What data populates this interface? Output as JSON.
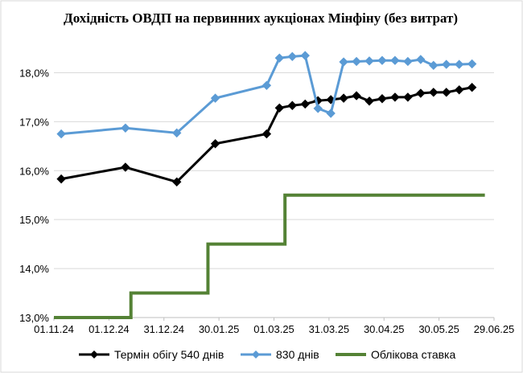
{
  "chart_data": {
    "type": "line",
    "title": "Дохідність ОВДП на первинних аукціонах Мінфіну (без витрат)",
    "xlabel": "",
    "ylabel": "",
    "x_ticks": [
      "01.11.24",
      "01.12.24",
      "31.12.24",
      "30.01.25",
      "01.03.25",
      "31.03.25",
      "30.04.25",
      "30.05.25",
      "29.06.25"
    ],
    "xlim": [
      "2024-11-01",
      "2025-06-29"
    ],
    "y_ticks": [
      "13,0%",
      "14,0%",
      "15,0%",
      "16,0%",
      "17,0%",
      "18,0%"
    ],
    "ylim": [
      13.0,
      18.5
    ],
    "grid": "horizontal",
    "legend": "bottom",
    "series": [
      {
        "name": "Термін обігу 540 днів",
        "color": "#000000",
        "marker": "diamond",
        "step": false,
        "points": [
          [
            "2024-11-05",
            15.83
          ],
          [
            "2024-12-10",
            16.07
          ],
          [
            "2025-01-07",
            15.77
          ],
          [
            "2025-01-28",
            16.55
          ],
          [
            "2025-02-25",
            16.75
          ],
          [
            "2025-03-04",
            17.28
          ],
          [
            "2025-03-11",
            17.33
          ],
          [
            "2025-03-18",
            17.36
          ],
          [
            "2025-03-25",
            17.43
          ],
          [
            "2025-04-01",
            17.45
          ],
          [
            "2025-04-08",
            17.48
          ],
          [
            "2025-04-15",
            17.53
          ],
          [
            "2025-04-22",
            17.42
          ],
          [
            "2025-04-29",
            17.47
          ],
          [
            "2025-05-06",
            17.5
          ],
          [
            "2025-05-13",
            17.5
          ],
          [
            "2025-05-20",
            17.58
          ],
          [
            "2025-05-27",
            17.6
          ],
          [
            "2025-06-03",
            17.6
          ],
          [
            "2025-06-10",
            17.65
          ],
          [
            "2025-06-17",
            17.7
          ]
        ]
      },
      {
        "name": "830 днів",
        "color": "#5b9bd5",
        "marker": "diamond",
        "step": false,
        "points": [
          [
            "2024-11-05",
            16.75
          ],
          [
            "2024-12-10",
            16.87
          ],
          [
            "2025-01-07",
            16.77
          ],
          [
            "2025-01-28",
            17.48
          ],
          [
            "2025-02-25",
            17.74
          ],
          [
            "2025-03-04",
            18.3
          ],
          [
            "2025-03-11",
            18.33
          ],
          [
            "2025-03-18",
            18.35
          ],
          [
            "2025-03-25",
            17.27
          ],
          [
            "2025-04-01",
            17.17
          ],
          [
            "2025-04-08",
            18.22
          ],
          [
            "2025-04-15",
            18.23
          ],
          [
            "2025-04-22",
            18.24
          ],
          [
            "2025-04-29",
            18.25
          ],
          [
            "2025-05-06",
            18.25
          ],
          [
            "2025-05-13",
            18.23
          ],
          [
            "2025-05-20",
            18.27
          ],
          [
            "2025-05-27",
            18.15
          ],
          [
            "2025-06-03",
            18.17
          ],
          [
            "2025-06-10",
            18.17
          ],
          [
            "2025-06-17",
            18.18
          ]
        ]
      },
      {
        "name": "Облікова ставка",
        "color": "#548235",
        "marker": "none",
        "step": true,
        "points": [
          [
            "2024-11-01",
            13.0
          ],
          [
            "2024-12-13",
            13.5
          ],
          [
            "2025-01-24",
            14.5
          ],
          [
            "2025-03-07",
            15.5
          ],
          [
            "2025-06-24",
            15.5
          ]
        ]
      }
    ]
  }
}
